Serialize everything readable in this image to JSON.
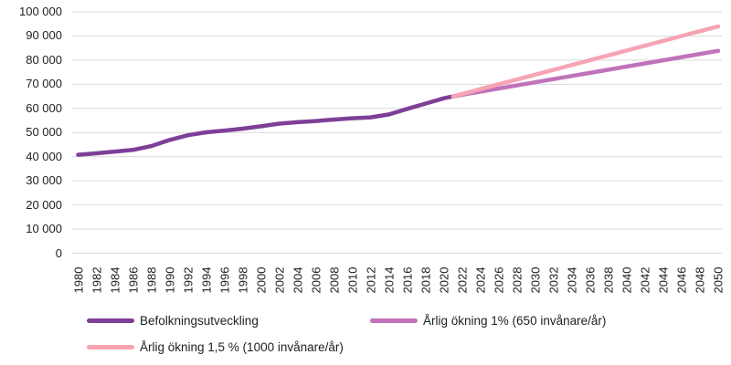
{
  "chart_data": {
    "type": "line",
    "title": "",
    "xlabel": "",
    "ylabel": "",
    "ylim": [
      0,
      100000
    ],
    "ytick_step": 10000,
    "ytick_labels_bottom_to_top": [
      "0",
      "10 000",
      "20 000",
      "30 000",
      "40 000",
      "50 000",
      "60 000",
      "70 000",
      "80 000",
      "90 000",
      "100 000"
    ],
    "xlim": [
      1980,
      2050
    ],
    "xtick_years": [
      1980,
      1982,
      1984,
      1986,
      1988,
      1990,
      1992,
      1994,
      1996,
      1998,
      2000,
      2002,
      2004,
      2006,
      2008,
      2010,
      2012,
      2014,
      2016,
      2018,
      2020,
      2022,
      2024,
      2026,
      2028,
      2030,
      2032,
      2034,
      2036,
      2038,
      2040,
      2042,
      2044,
      2046,
      2048,
      2050
    ],
    "grid": "horizontal",
    "gridline_color": "#d9d9d9",
    "legend_position": "bottom-left",
    "series": [
      {
        "name": "Befolkningsutveckling",
        "color": "#7e3f97",
        "points": [
          [
            1980,
            40800
          ],
          [
            1982,
            41400
          ],
          [
            1984,
            42100
          ],
          [
            1986,
            42800
          ],
          [
            1988,
            44400
          ],
          [
            1990,
            46900
          ],
          [
            1992,
            48900
          ],
          [
            1994,
            50100
          ],
          [
            1996,
            50800
          ],
          [
            1998,
            51600
          ],
          [
            2000,
            52600
          ],
          [
            2002,
            53700
          ],
          [
            2004,
            54300
          ],
          [
            2006,
            54800
          ],
          [
            2008,
            55400
          ],
          [
            2010,
            55900
          ],
          [
            2012,
            56300
          ],
          [
            2014,
            57500
          ],
          [
            2016,
            59800
          ],
          [
            2018,
            62000
          ],
          [
            2020,
            64200
          ],
          [
            2021,
            65000
          ]
        ]
      },
      {
        "name": "Årlig ökning 1% (650 invånare/år)",
        "color": "#c073ba",
        "points": [
          [
            2021,
            65000
          ],
          [
            2050,
            83850
          ]
        ]
      },
      {
        "name": "Årlig ökning 1,5 % (1000 invånare/år)",
        "color": "#f6a4b4",
        "points": [
          [
            2021,
            65000
          ],
          [
            2050,
            94000
          ]
        ]
      }
    ]
  }
}
